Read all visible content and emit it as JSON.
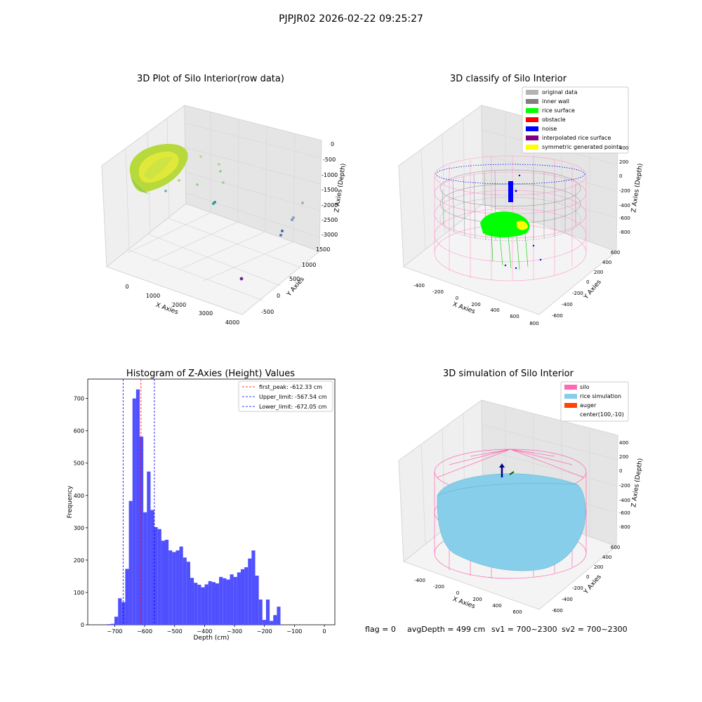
{
  "suptitle": "PJPJR02 2026-02-22 09:25:27",
  "footer": {
    "flag": "flag = 0",
    "avg": "avgDepth = 499 cm",
    "sv1": "sv1 = 700~2300",
    "sv2": "sv2 = 700~2300"
  },
  "panels": {
    "raw": {
      "title": "3D Plot of Silo Interior(row data)",
      "xlabel": "X Axies",
      "ylabel": "Y Axies",
      "zlabel": "Z Axies (Depth)",
      "xticks": [
        "0",
        "1000",
        "2000",
        "3000",
        "4000"
      ],
      "yticks": [
        "-500",
        "0",
        "500",
        "1000",
        "1500"
      ],
      "zticks": [
        "0",
        "-500",
        "-1000",
        "-1500",
        "-2000",
        "-2500",
        "-3000"
      ]
    },
    "classify": {
      "title": "3D classify of Silo Interior",
      "xlabel": "X Axies",
      "ylabel": "Y Axies",
      "zlabel": "Z Axies (Depth)",
      "xticks": [
        "-400",
        "-200",
        "0",
        "200",
        "400",
        "600",
        "800"
      ],
      "yticks": [
        "-600",
        "-400",
        "-200",
        "0",
        "200",
        "400",
        "600"
      ],
      "zticks": [
        "400",
        "200",
        "0",
        "-200",
        "-400",
        "-600",
        "-800"
      ],
      "legend": [
        {
          "label": "original data",
          "color": "#b4b4b4"
        },
        {
          "label": "inner wall",
          "color": "#808080"
        },
        {
          "label": "rice surface",
          "color": "#00ff00"
        },
        {
          "label": "obstacle",
          "color": "#ff0000"
        },
        {
          "label": "noise",
          "color": "#0000ff"
        },
        {
          "label": "interpolated rice surface",
          "color": "#800080"
        },
        {
          "label": "symmetric generated points",
          "color": "#ffff00"
        }
      ]
    },
    "simulation": {
      "title": "3D simulation of Silo Interior",
      "xlabel": "X Axies",
      "ylabel": "Y Axies",
      "zlabel": "Z Axies (Depth)",
      "xticks": [
        "-400",
        "-200",
        "0",
        "200",
        "400",
        "600"
      ],
      "yticks": [
        "-600",
        "-400",
        "-200",
        "0",
        "200",
        "400",
        "600"
      ],
      "zticks": [
        "400",
        "200",
        "0",
        "-200",
        "-400",
        "-600",
        "-800"
      ],
      "legend": [
        {
          "label": "silo",
          "color": "#ff69b4"
        },
        {
          "label": "rice simulation",
          "color": "#87ceeb"
        },
        {
          "label": "auger",
          "color": "#ff4500"
        },
        {
          "label": "center(100,-10)",
          "color": ""
        }
      ]
    }
  },
  "chart_data": {
    "type": "bar",
    "title": "Histogram of Z-Axies (Height) Values",
    "xlabel": "Depth (cm)",
    "ylabel": "Frequency",
    "xlim": [
      -790,
      35
    ],
    "ylim": [
      0,
      760
    ],
    "bin_start": -725,
    "bin_width": 12.05,
    "bar_color": "#5050ff",
    "values": [
      2,
      3,
      25,
      82,
      70,
      173,
      383,
      700,
      728,
      582,
      348,
      474,
      355,
      302,
      296,
      260,
      263,
      230,
      225,
      230,
      242,
      208,
      195,
      145,
      130,
      124,
      116,
      125,
      135,
      132,
      128,
      148,
      144,
      140,
      156,
      148,
      162,
      172,
      178,
      205,
      230,
      152,
      78,
      15,
      78,
      12,
      30,
      56
    ],
    "xticks": [
      -700,
      -600,
      -500,
      -400,
      -300,
      -200,
      -100,
      0
    ],
    "yticks": [
      0,
      100,
      200,
      300,
      400,
      500,
      600,
      700
    ],
    "vlines": [
      {
        "label": "first_peak: -612.33 cm",
        "x": -612.33,
        "color": "#ff0000"
      },
      {
        "label": "Upper_limit: -567.54 cm",
        "x": -567.54,
        "color": "#0000ff"
      },
      {
        "label": "Lower_limit: -672.05 cm",
        "x": -672.05,
        "color": "#0000ff"
      }
    ]
  }
}
